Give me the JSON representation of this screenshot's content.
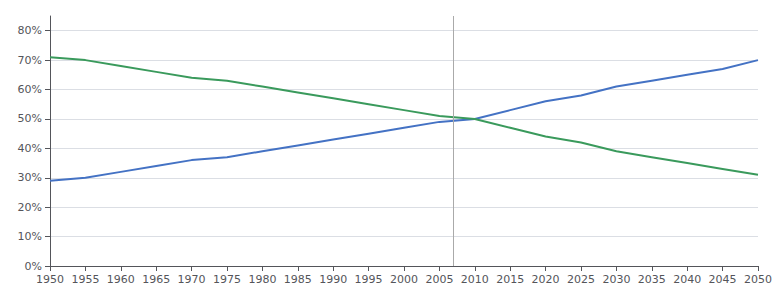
{
  "chart_data": {
    "type": "line",
    "x": [
      1950,
      1955,
      1960,
      1965,
      1970,
      1975,
      1980,
      1985,
      1990,
      1995,
      2000,
      2005,
      2010,
      2015,
      2020,
      2025,
      2030,
      2035,
      2040,
      2045,
      2050
    ],
    "series": [
      {
        "color": "#4472c4",
        "values": [
          29,
          30,
          32,
          34,
          36,
          37,
          39,
          41,
          43,
          45,
          47,
          49,
          50,
          53,
          56,
          58,
          61,
          63,
          65,
          67,
          70
        ]
      },
      {
        "color": "#3a9a5c",
        "values": [
          71,
          70,
          68,
          66,
          64,
          63,
          61,
          59,
          57,
          55,
          53,
          51,
          50,
          47,
          44,
          42,
          39,
          37,
          35,
          33,
          31
        ]
      }
    ],
    "vline": {
      "x": 2007,
      "color": "#aaaaaa"
    },
    "xlim": [
      1950,
      2050
    ],
    "xticks": [
      1950,
      1955,
      1960,
      1965,
      1970,
      1975,
      1980,
      1985,
      1990,
      1995,
      2000,
      2005,
      2010,
      2015,
      2020,
      2025,
      2030,
      2035,
      2040,
      2045,
      2050
    ],
    "ylim": [
      0,
      85
    ],
    "yticks": [
      {
        "value": 0,
        "label": "0%"
      },
      {
        "value": 10,
        "label": "10%"
      },
      {
        "value": 20,
        "label": "20%"
      },
      {
        "value": 30,
        "label": "30%"
      },
      {
        "value": 40,
        "label": "40%"
      },
      {
        "value": 50,
        "label": "50%"
      },
      {
        "value": 60,
        "label": "60%"
      },
      {
        "value": 70,
        "label": "70%"
      },
      {
        "value": 80,
        "label": "80%"
      }
    ],
    "grid": true
  }
}
